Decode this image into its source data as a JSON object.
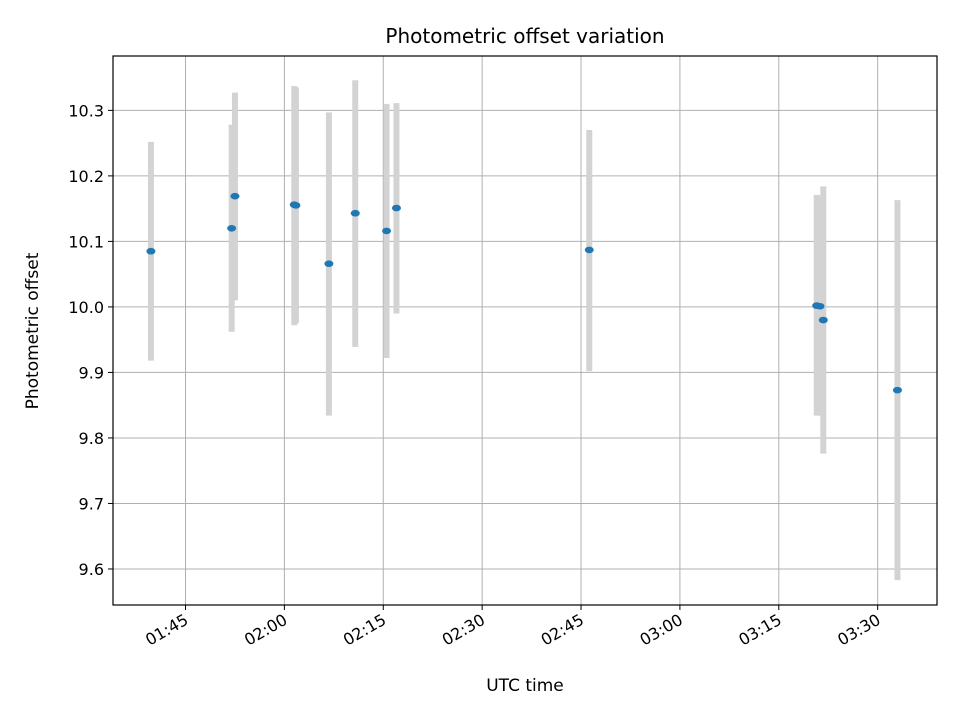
{
  "chart_data": {
    "type": "scatter",
    "title": "Photometric offset variation",
    "xlabel": "UTC time",
    "ylabel": "Photometric offset",
    "x_ticks": [
      "01:45",
      "02:00",
      "02:15",
      "02:30",
      "02:45",
      "03:00",
      "03:15",
      "03:30"
    ],
    "x_range": [
      "01:34:00",
      "03:39:00"
    ],
    "y_ticks": [
      "9.6",
      "9.7",
      "9.8",
      "9.9",
      "10.0",
      "10.1",
      "10.2",
      "10.3"
    ],
    "y_range": [
      9.545,
      10.383
    ],
    "grid": true,
    "colors": {
      "point": "#1f77b4",
      "errorbar": "#d3d3d3",
      "grid": "#b0b0b0",
      "axis": "#000000"
    },
    "points": [
      {
        "time": "01:39:45",
        "y": 10.085,
        "y_low": 9.918,
        "y_high": 10.252
      },
      {
        "time": "01:52:00",
        "y": 10.12,
        "y_low": 9.962,
        "y_high": 10.278
      },
      {
        "time": "01:52:30",
        "y": 10.169,
        "y_low": 10.01,
        "y_high": 10.327
      },
      {
        "time": "02:01:30",
        "y": 10.156,
        "y_low": 9.972,
        "y_high": 10.337
      },
      {
        "time": "02:01:45",
        "y": 10.155,
        "y_low": 9.975,
        "y_high": 10.335
      },
      {
        "time": "02:06:45",
        "y": 10.066,
        "y_low": 9.834,
        "y_high": 10.297
      },
      {
        "time": "02:10:45",
        "y": 10.143,
        "y_low": 9.939,
        "y_high": 10.346
      },
      {
        "time": "02:15:30",
        "y": 10.116,
        "y_low": 9.922,
        "y_high": 10.31
      },
      {
        "time": "02:17:00",
        "y": 10.151,
        "y_low": 9.99,
        "y_high": 10.311
      },
      {
        "time": "02:46:15",
        "y": 10.087,
        "y_low": 9.902,
        "y_high": 10.27
      },
      {
        "time": "03:20:45",
        "y": 10.002,
        "y_low": 9.834,
        "y_high": 10.171
      },
      {
        "time": "03:21:15",
        "y": 10.001,
        "y_low": 9.834,
        "y_high": 10.17
      },
      {
        "time": "03:21:45",
        "y": 9.98,
        "y_low": 9.776,
        "y_high": 10.184
      },
      {
        "time": "03:33:00",
        "y": 9.873,
        "y_low": 9.583,
        "y_high": 10.163
      }
    ]
  }
}
